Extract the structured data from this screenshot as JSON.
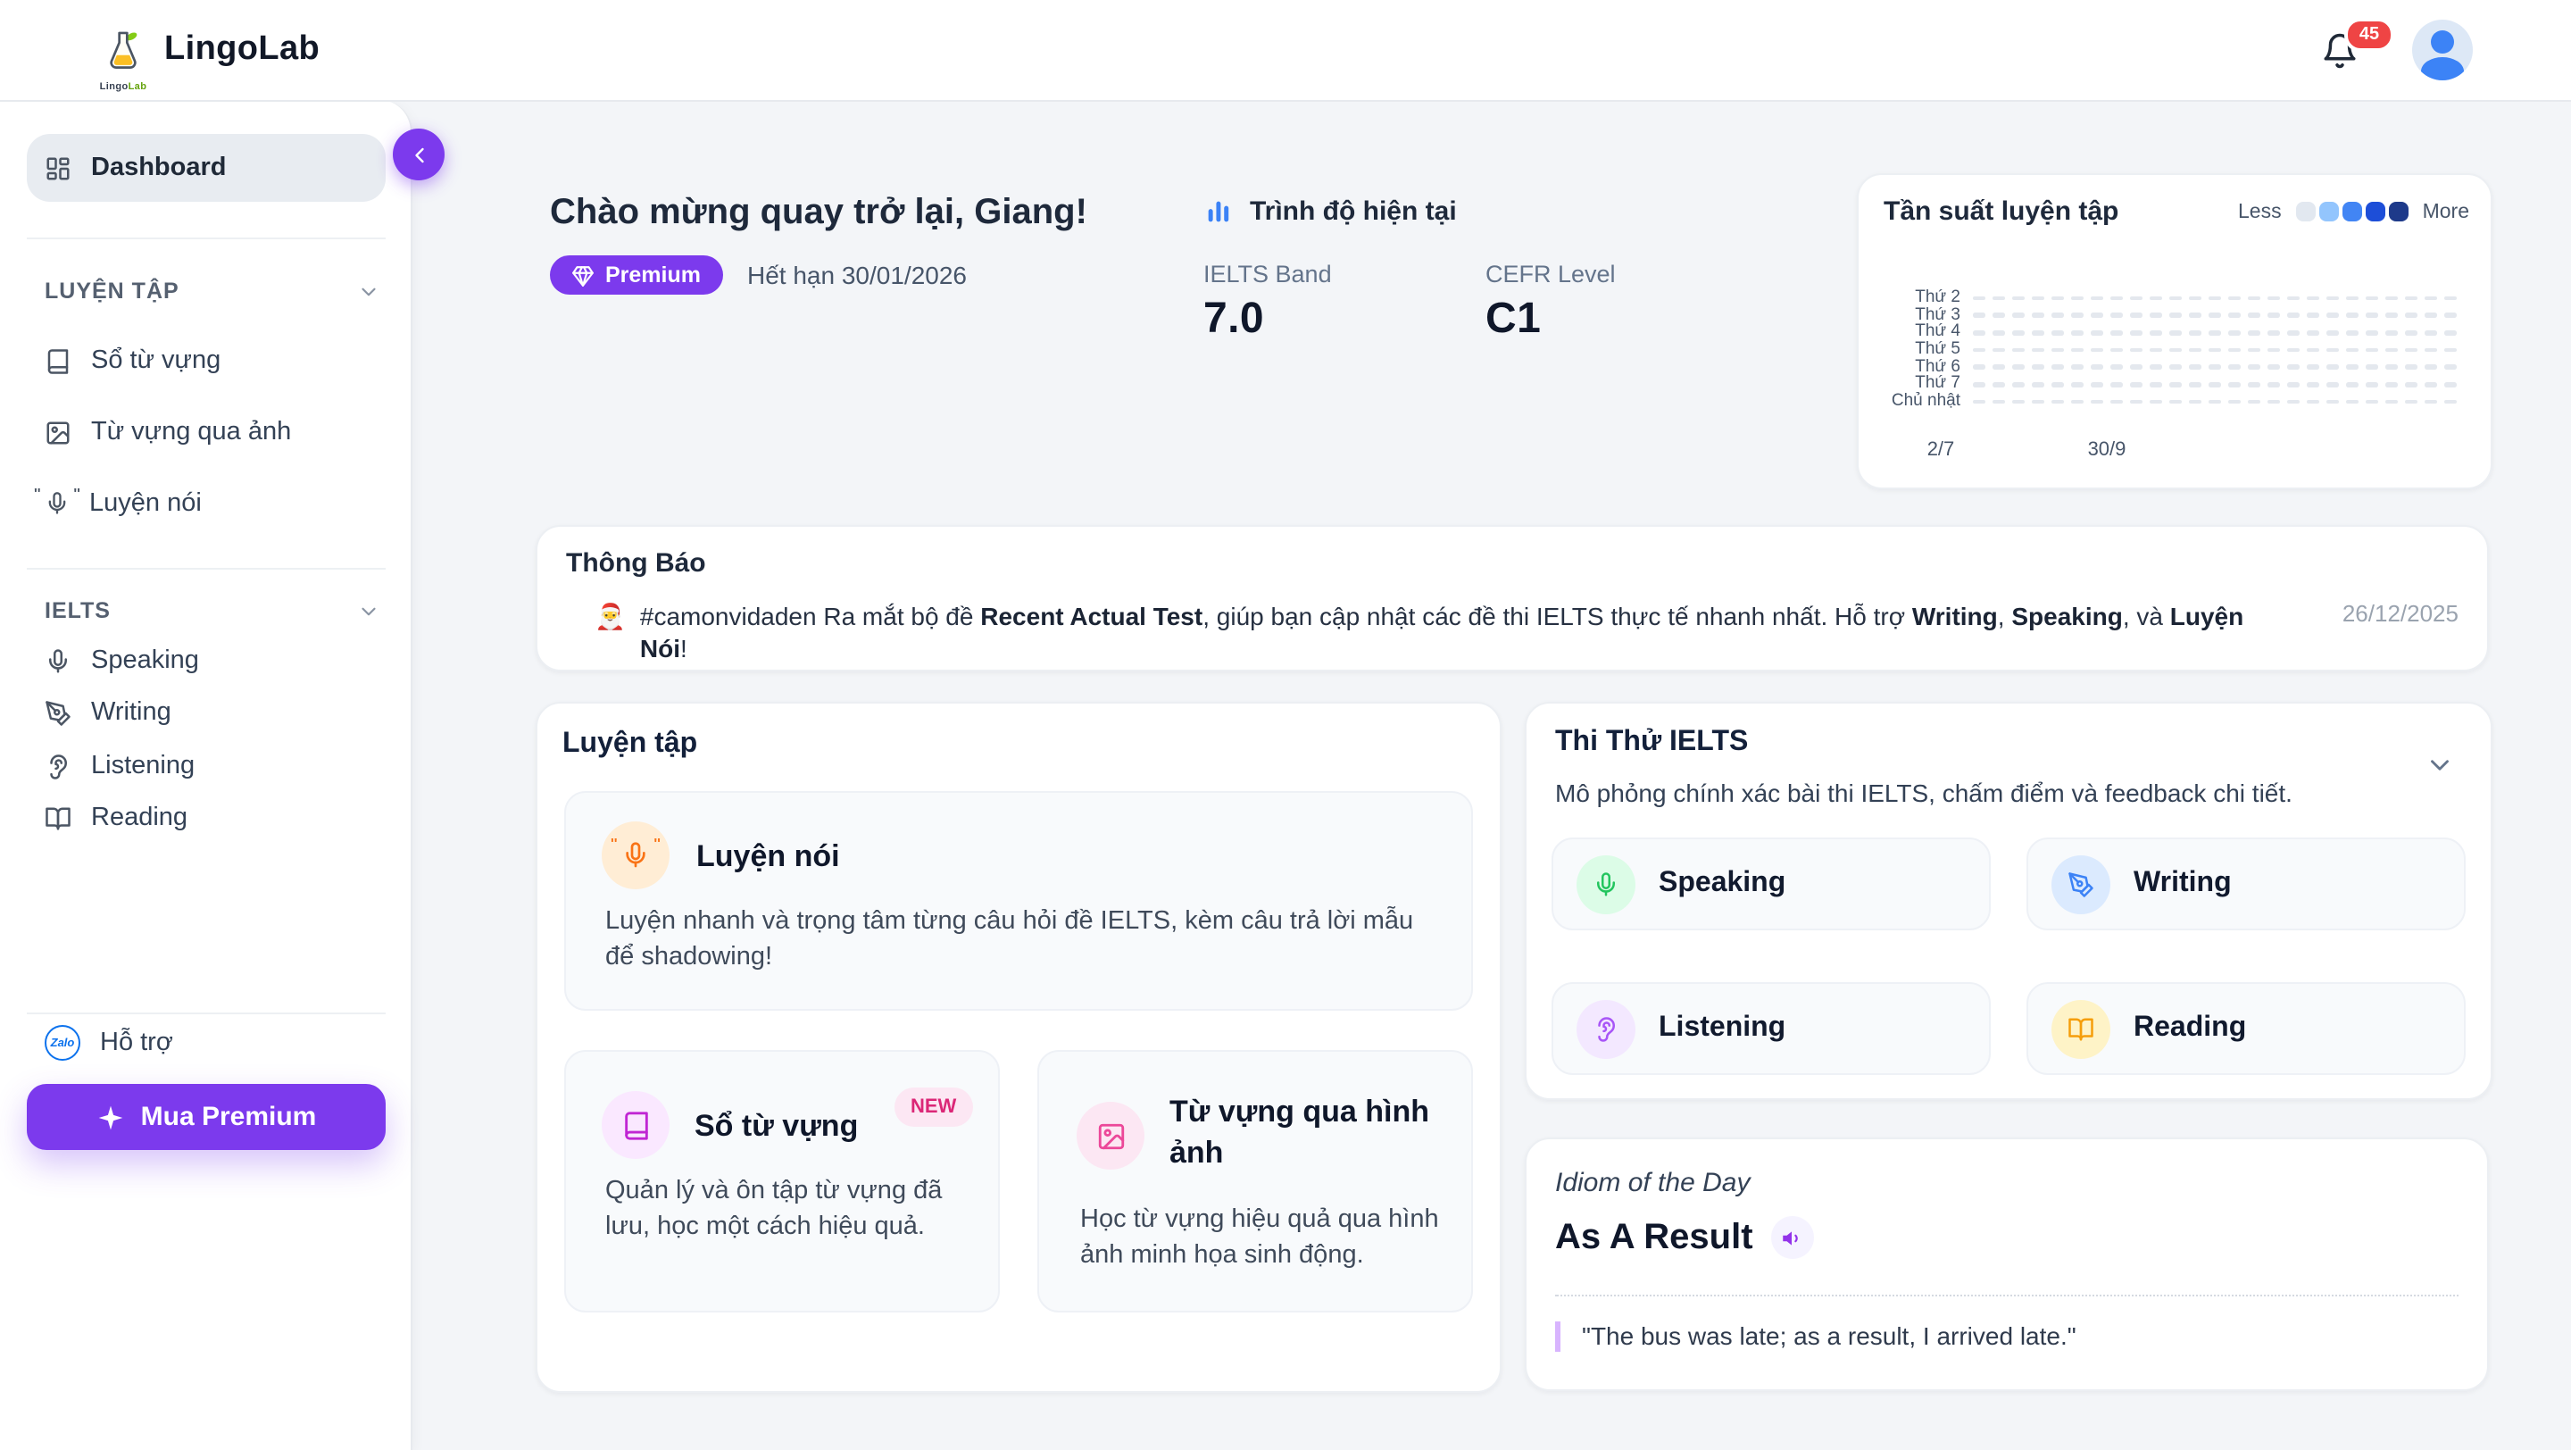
{
  "topbar": {
    "brand": "LingoLab",
    "logo_sub_lingo": "Lingo",
    "logo_sub_lab": "Lab",
    "notification_count": "45"
  },
  "sidebar": {
    "dashboard_label": "Dashboard",
    "sections": [
      {
        "title": "LUYỆN TẬP",
        "items": [
          {
            "label": "Sổ từ vựng"
          },
          {
            "label": "Từ vựng qua ảnh"
          },
          {
            "label": "Luyện nói"
          }
        ]
      },
      {
        "title": "IELTS",
        "items": [
          {
            "label": "Speaking"
          },
          {
            "label": "Writing"
          },
          {
            "label": "Listening"
          },
          {
            "label": "Reading"
          }
        ]
      }
    ],
    "support_label": "Hỗ trợ",
    "zalo_label": "Zalo",
    "premium_button_label": "Mua Premium"
  },
  "welcome": {
    "greeting": "Chào mừng quay trở lại, Giang!",
    "plan_badge": "Premium",
    "expiry": "Hết hạn 30/01/2026"
  },
  "level": {
    "title": "Trình độ hiện tại",
    "ielts_label": "IELTS Band",
    "ielts_value": "7.0",
    "cefr_label": "CEFR Level",
    "cefr_value": "C1"
  },
  "chart_data": {
    "type": "heatmap",
    "title": "Tần suất luyện tập",
    "legend_less": "Less",
    "legend_more": "More",
    "legend_scale_colors": [
      "#e2e8f0",
      "#93c5fd",
      "#4285f4",
      "#1d4ed8",
      "#1e3a8a"
    ],
    "rows": [
      "Thứ 2",
      "Thứ 3",
      "Thứ 4",
      "Thứ 5",
      "Thứ 6",
      "Thứ 7",
      "Chủ nhật"
    ],
    "columns": 25,
    "uniform_value": 0,
    "empty_cell_color": "#e4e8ee",
    "x_tick_labels": [
      {
        "label": "2/7"
      },
      {
        "label": "30/9"
      }
    ],
    "legend_position": "top-right",
    "grid": "dashed-empty"
  },
  "announcement": {
    "title": "Thông Báo",
    "emoji": "🎅",
    "message_parts": [
      {
        "text": "#camonvidaden Ra mắt bộ đề ",
        "bold": false
      },
      {
        "text": "Recent Actual Test",
        "bold": true
      },
      {
        "text": ", giúp bạn cập nhật các đề thi IELTS thực tế nhanh nhất. Hỗ trợ ",
        "bold": false
      },
      {
        "text": "Writing",
        "bold": true
      },
      {
        "text": ", ",
        "bold": false
      },
      {
        "text": "Speaking",
        "bold": true
      },
      {
        "text": ", và ",
        "bold": false
      },
      {
        "text": "Luyện Nói",
        "bold": true
      },
      {
        "text": "!",
        "bold": false
      }
    ],
    "date": "26/12/2025"
  },
  "practice": {
    "title": "Luyện tập",
    "speaking_tile": {
      "title": "Luyện nói",
      "description": "Luyện nhanh và trọng tâm từng câu hỏi đề IELTS, kèm câu trả lời mẫu để shadowing!",
      "circle_color": "#ffedd5",
      "icon_color": "#f97316"
    },
    "vocab_tile": {
      "title": "Sổ từ vựng",
      "badge": "NEW",
      "description": "Quản lý và ôn tập từ vựng đã lưu, học một cách hiệu quả.",
      "circle_color": "#fae8ff",
      "icon_color": "#c026d3"
    },
    "image_tile": {
      "title": "Từ vựng qua hình ảnh",
      "description": "Học từ vựng hiệu quả qua hình ảnh minh họa sinh động.",
      "circle_color": "#fce7f3",
      "icon_color": "#ec4899"
    }
  },
  "mock": {
    "title": "Thi Thử IELTS",
    "subtitle": "Mô phỏng chính xác bài thi IELTS, chấm điểm và feedback chi tiết.",
    "tiles": [
      {
        "label": "Speaking",
        "circle_color": "#dcfce7",
        "icon_color": "#22c55e"
      },
      {
        "label": "Writing",
        "circle_color": "#dbeafe",
        "icon_color": "#3b82f6"
      },
      {
        "label": "Listening",
        "circle_color": "#f3e8ff",
        "icon_color": "#a855f7"
      },
      {
        "label": "Reading",
        "circle_color": "#fef3c7",
        "icon_color": "#f59e0b"
      }
    ]
  },
  "idiom": {
    "kicker": "Idiom of the Day",
    "phrase": "As A Result",
    "example": "\"The bus was late; as a result, I arrived late.\""
  },
  "colors": {
    "accent_purple": "#7c3aed",
    "notification_red": "#ef4444",
    "level_icon_blue": "#3b82f6",
    "background": "#f3f5f8"
  }
}
